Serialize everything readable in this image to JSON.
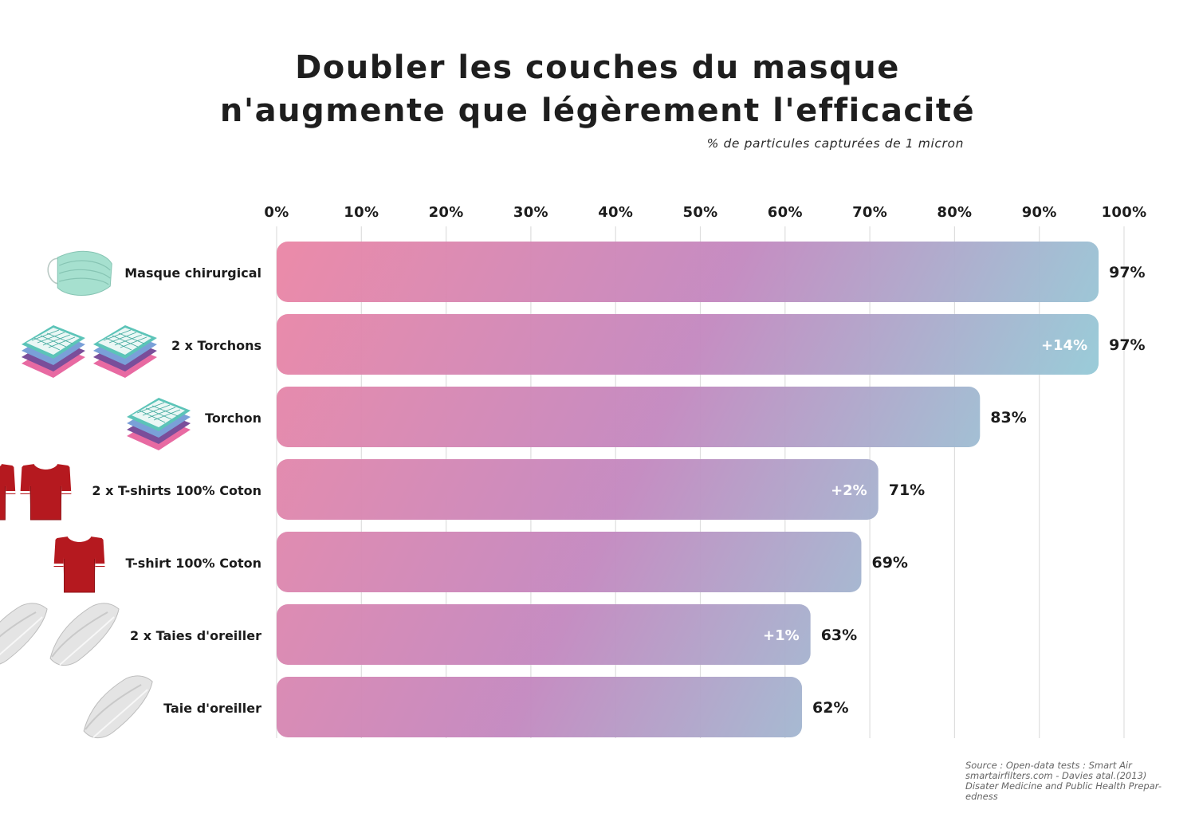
{
  "title_line1": "Doubler les couches du masque",
  "title_line2": "n'augmente que légèrement l'efficacité",
  "subtitle": "% de particules capturées de 1 micron",
  "source": {
    "line1": "Source :  Open-data tests : Smart Air",
    "line2": "smartairfilters.com - Davies atal.(2013)",
    "line3": "Disater Medicine and Public Health Prepar-",
    "line4": "edness"
  },
  "colors": {
    "gradient_start": "#ee87a4",
    "gradient_mid": "#c489c0",
    "gradient_end": "#8dd8dc",
    "grid": "#dedede",
    "text": "#1c1c1c",
    "shirt": "#b5191f",
    "towel_teal": "#5cc4b8",
    "towel_blue": "#7aa0d8",
    "towel_purple": "#7a4e9a",
    "towel_pink": "#e86aa2",
    "mask": "#9fdccb",
    "pillow": "#e6e6e6"
  },
  "chart_data": {
    "type": "bar",
    "orientation": "horizontal",
    "x_ticks": [
      "0%",
      "10%",
      "20%",
      "30%",
      "40%",
      "50%",
      "60%",
      "70%",
      "80%",
      "90%",
      "100%"
    ],
    "xlim": [
      0,
      100
    ],
    "grid": true,
    "categories": [
      "Masque chirurgical",
      "2 x Torchons",
      "Torchon",
      "2 x T-shirts 100% Coton",
      "T-shirt 100% Coton",
      "2 x Taies d'oreiller",
      "Taie d'oreiller"
    ],
    "values": [
      97,
      97,
      83,
      71,
      69,
      63,
      62
    ],
    "value_labels": [
      "97%",
      "97%",
      "83%",
      "71%",
      "69%",
      "63%",
      "62%"
    ],
    "increase_labels": [
      "",
      "+14%",
      "",
      "+2%",
      "",
      "+1%",
      ""
    ],
    "icons": [
      "mask-icon",
      "towel-icon",
      "towel-icon",
      "tshirt-icon",
      "tshirt-icon",
      "pillow-icon",
      "pillow-icon"
    ],
    "icon_counts": [
      1,
      2,
      1,
      2,
      1,
      2,
      1
    ]
  }
}
